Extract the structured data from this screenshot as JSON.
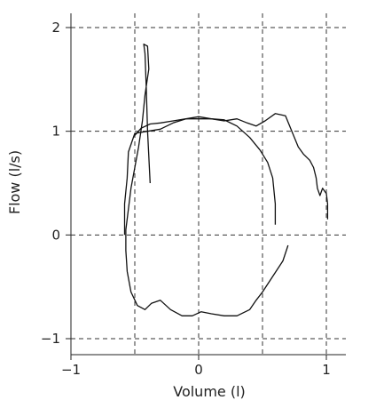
{
  "chart_data": {
    "type": "line",
    "xlabel": "Volume (l)",
    "ylabel": "Flow (l/s)",
    "xlim": [
      -1,
      1
    ],
    "ylim": [
      -1,
      2
    ],
    "x_ticks": [
      {
        "value": -1,
        "label": "−1"
      },
      {
        "value": 0,
        "label": "0"
      },
      {
        "value": 1,
        "label": "1"
      }
    ],
    "y_ticks": [
      {
        "value": -1,
        "label": "−1"
      },
      {
        "value": 0,
        "label": "0"
      },
      {
        "value": 1,
        "label": "1"
      },
      {
        "value": 2,
        "label": "2"
      }
    ],
    "grid": true,
    "grid_x": [
      -1,
      -0.5,
      0,
      0.5,
      1
    ],
    "grid_y": [
      -1,
      0,
      1,
      2
    ],
    "series": [
      {
        "values": [
          [
            -0.38,
            0.5
          ],
          [
            -0.4,
            1.0
          ],
          [
            -0.41,
            1.4
          ],
          [
            -0.42,
            1.75
          ],
          [
            -0.43,
            1.84
          ],
          [
            -0.4,
            1.82
          ],
          [
            -0.39,
            1.6
          ],
          [
            -0.42,
            1.35
          ],
          [
            -0.44,
            1.1
          ],
          [
            -0.47,
            0.85
          ],
          [
            -0.5,
            0.65
          ],
          [
            -0.53,
            0.45
          ],
          [
            -0.55,
            0.25
          ],
          [
            -0.57,
            0.05
          ],
          [
            -0.57,
            -0.15
          ],
          [
            -0.56,
            -0.35
          ],
          [
            -0.53,
            -0.55
          ],
          [
            -0.48,
            -0.68
          ],
          [
            -0.42,
            -0.72
          ],
          [
            -0.37,
            -0.66
          ],
          [
            -0.3,
            -0.63
          ],
          [
            -0.22,
            -0.72
          ],
          [
            -0.13,
            -0.78
          ],
          [
            -0.05,
            -0.78
          ],
          [
            0.02,
            -0.74
          ],
          [
            0.1,
            -0.76
          ],
          [
            0.2,
            -0.78
          ],
          [
            0.3,
            -0.78
          ],
          [
            0.4,
            -0.72
          ],
          [
            0.45,
            -0.63
          ],
          [
            0.5,
            -0.55
          ],
          [
            0.58,
            -0.4
          ],
          [
            0.66,
            -0.25
          ],
          [
            0.7,
            -0.1
          ]
        ]
      },
      {
        "values": [
          [
            0.6,
            0.1
          ],
          [
            0.6,
            0.3
          ],
          [
            0.58,
            0.55
          ],
          [
            0.54,
            0.7
          ],
          [
            0.48,
            0.82
          ],
          [
            0.4,
            0.94
          ],
          [
            0.3,
            1.05
          ],
          [
            0.2,
            1.11
          ],
          [
            0.1,
            1.12
          ],
          [
            0.0,
            1.12
          ],
          [
            -0.1,
            1.12
          ],
          [
            -0.2,
            1.08
          ],
          [
            -0.3,
            1.02
          ],
          [
            -0.4,
            1.0
          ],
          [
            -0.5,
            0.98
          ],
          [
            -0.55,
            0.8
          ],
          [
            -0.56,
            0.55
          ],
          [
            -0.58,
            0.3
          ],
          [
            -0.58,
            0.0
          ]
        ]
      },
      {
        "values": [
          [
            -0.5,
            0.96
          ],
          [
            -0.45,
            1.03
          ],
          [
            -0.38,
            1.07
          ],
          [
            -0.3,
            1.08
          ],
          [
            -0.2,
            1.1
          ],
          [
            -0.1,
            1.12
          ],
          [
            0.0,
            1.14
          ],
          [
            0.1,
            1.12
          ],
          [
            0.2,
            1.1
          ],
          [
            0.3,
            1.12
          ],
          [
            0.38,
            1.08
          ],
          [
            0.45,
            1.05
          ],
          [
            0.52,
            1.1
          ],
          [
            0.6,
            1.17
          ],
          [
            0.68,
            1.15
          ],
          [
            0.73,
            1.0
          ],
          [
            0.78,
            0.85
          ],
          [
            0.82,
            0.78
          ],
          [
            0.87,
            0.72
          ],
          [
            0.9,
            0.65
          ],
          [
            0.92,
            0.55
          ],
          [
            0.93,
            0.45
          ],
          [
            0.95,
            0.38
          ],
          [
            0.97,
            0.45
          ],
          [
            1.0,
            0.4
          ],
          [
            1.01,
            0.3
          ],
          [
            1.01,
            0.15
          ]
        ]
      }
    ]
  }
}
